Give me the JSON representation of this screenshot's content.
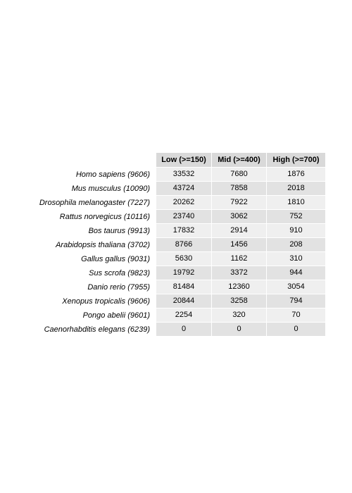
{
  "table": {
    "columns": [
      "Low (>=150)",
      "Mid (>=400)",
      "High (>=700)"
    ],
    "rows": [
      {
        "label": "Homo sapiens (9606)",
        "values": [
          "33532",
          "7680",
          "1876"
        ]
      },
      {
        "label": "Mus musculus (10090)",
        "values": [
          "43724",
          "7858",
          "2018"
        ]
      },
      {
        "label": "Drosophila melanogaster (7227)",
        "values": [
          "20262",
          "7922",
          "1810"
        ]
      },
      {
        "label": "Rattus norvegicus (10116)",
        "values": [
          "23740",
          "3062",
          "752"
        ]
      },
      {
        "label": "Bos taurus (9913)",
        "values": [
          "17832",
          "2914",
          "910"
        ]
      },
      {
        "label": "Arabidopsis thaliana (3702)",
        "values": [
          "8766",
          "1456",
          "208"
        ]
      },
      {
        "label": "Gallus gallus (9031)",
        "values": [
          "5630",
          "1162",
          "310"
        ]
      },
      {
        "label": "Sus scrofa (9823)",
        "values": [
          "19792",
          "3372",
          "944"
        ]
      },
      {
        "label": "Danio rerio (7955)",
        "values": [
          "81484",
          "12360",
          "3054"
        ]
      },
      {
        "label": "Xenopus tropicalis (9606)",
        "values": [
          "20844",
          "3258",
          "794"
        ]
      },
      {
        "label": "Pongo abelii (9601)",
        "values": [
          "2254",
          "320",
          "70"
        ]
      },
      {
        "label": "Caenorhabditis elegans (6239)",
        "values": [
          "0",
          "0",
          "0"
        ]
      }
    ]
  },
  "colors": {
    "header_bg": "#d9d9d9",
    "row_odd_bg": "#efefef",
    "row_even_bg": "#e2e2e2"
  }
}
